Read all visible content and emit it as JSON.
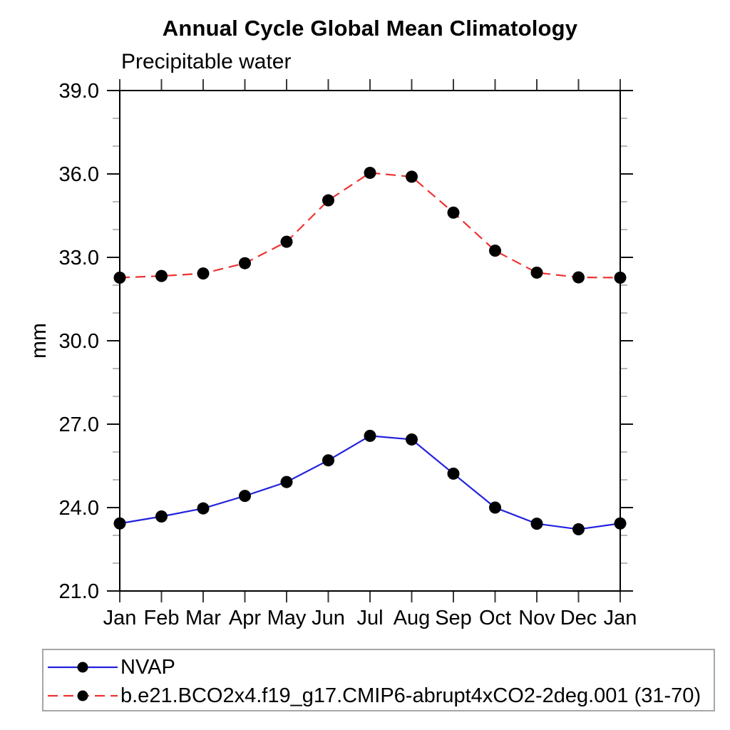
{
  "chart_data": {
    "type": "line",
    "title": "Annual Cycle Global Mean Climatology",
    "subtitle": "Precipitable water",
    "ylabel": "mm",
    "x_categories": [
      "Jan",
      "Feb",
      "Mar",
      "Apr",
      "May",
      "Jun",
      "Jul",
      "Aug",
      "Sep",
      "Oct",
      "Nov",
      "Dec",
      "Jan"
    ],
    "ylim": [
      21.0,
      39.0
    ],
    "y_major_step": 3,
    "y_minor_step": 1,
    "y_tick_labels": [
      "21.0",
      "24.0",
      "27.0",
      "30.0",
      "33.0",
      "36.0",
      "39.0"
    ],
    "grid": false,
    "legend_position": "bottom",
    "axis_color": "#000000",
    "series": [
      {
        "name": "NVAP",
        "color": "#2222dd",
        "line_style": "solid",
        "marker": "circle",
        "marker_color": "#000000",
        "values": [
          23.43,
          23.68,
          23.97,
          24.42,
          24.92,
          25.7,
          26.58,
          26.45,
          25.22,
          24.0,
          23.42,
          23.22,
          23.43
        ]
      },
      {
        "name": "b.e21.BCO2x4.f19_g17.CMIP6-abrupt4xCO2-2deg.001 (31-70)",
        "color": "#ee3333",
        "line_style": "dashed",
        "marker": "circle",
        "marker_color": "#000000",
        "values": [
          32.27,
          32.33,
          32.42,
          32.79,
          33.56,
          35.05,
          36.04,
          35.9,
          34.61,
          33.24,
          32.45,
          32.28,
          32.27
        ]
      }
    ]
  }
}
